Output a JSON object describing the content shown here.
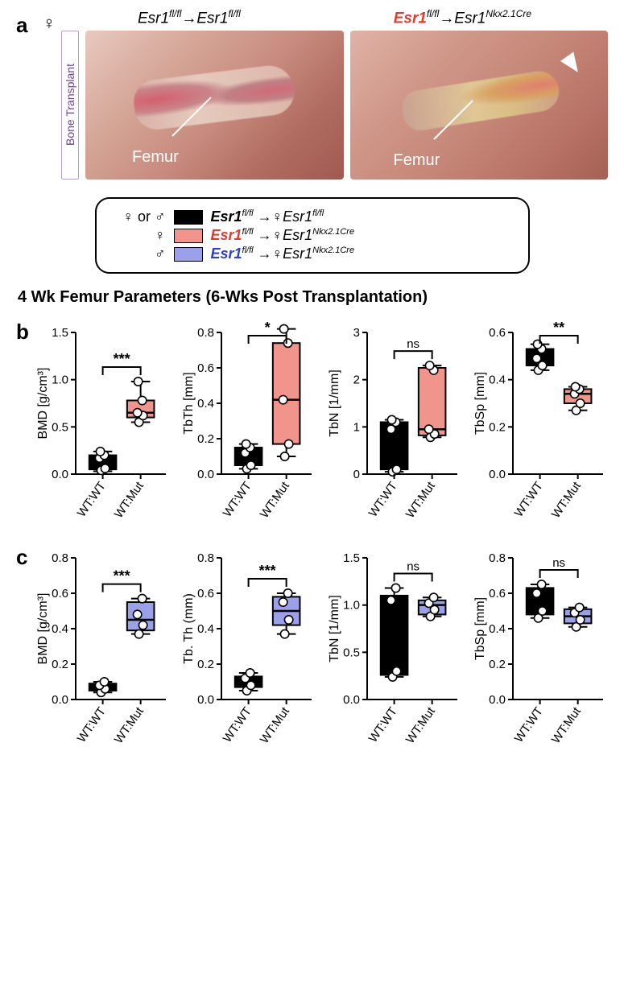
{
  "colors": {
    "black": "#000000",
    "pink": "#f0948c",
    "blue": "#9aa1e8",
    "white": "#ffffff"
  },
  "panel_a": {
    "label": "a",
    "gender_symbol": "♀",
    "side_label": "Bone Transplant",
    "title_left": "Esr1<sup>fl/fl</sup>→Esr1<sup>fl/fl</sup>",
    "title_right_red": "Esr1",
    "title_right_rest": "<sup>fl/fl</sup>→Esr1<sup>Nkx2.1Cre</sup>",
    "femur_label": "Femur"
  },
  "legend": {
    "rows": [
      {
        "sym": "♀ or ♂",
        "swatch": "#000000",
        "pre_color": "black",
        "text": "Esr1<sup>fl/fl</sup> →♀Esr1<sup>fl/fl</sup>"
      },
      {
        "sym": "♀",
        "swatch": "#f0948c",
        "pre_color": "red",
        "text": "Esr1<sup>fl/fl</sup> →♀Esr1<sup>Nkx2.1Cre</sup>"
      },
      {
        "sym": "♂",
        "swatch": "#9aa1e8",
        "pre_color": "blue",
        "text": "Esr1<sup>fl/fl</sup> →♀Esr1<sup>Nkx2.1Cre</sup>"
      }
    ]
  },
  "section_title": "4 Wk Femur Parameters (6-Wks Post Transplantation)",
  "axis_style": {
    "tick_len": 6,
    "axis_width": 2
  },
  "categories": [
    "WT:WT",
    "WT:Mut"
  ],
  "point_radius": 5.2,
  "rows": [
    {
      "label": "b",
      "mut_color": "#f0948c",
      "charts": [
        {
          "ylab": "BMD [g/cm³]",
          "ymin": 0,
          "ymax": 1.5,
          "yticks": [
            0.0,
            0.5,
            1.0,
            1.5
          ],
          "sig": "***",
          "groups": [
            {
              "fill": "#000000",
              "box": {
                "q1": 0.05,
                "med": 0.15,
                "q3": 0.2
              },
              "whisk": {
                "lo": 0.03,
                "hi": 0.24
              },
              "pts": [
                0.04,
                0.06,
                0.17,
                0.2,
                0.24
              ]
            },
            {
              "fill": "#f0948c",
              "box": {
                "q1": 0.6,
                "med": 0.65,
                "q3": 0.78
              },
              "whisk": {
                "lo": 0.55,
                "hi": 0.98
              },
              "pts": [
                0.55,
                0.62,
                0.65,
                0.78,
                0.98
              ]
            }
          ]
        },
        {
          "ylab": "TbTh [mm]",
          "ymin": 0,
          "ymax": 0.8,
          "yticks": [
            0.0,
            0.2,
            0.4,
            0.6,
            0.8
          ],
          "sig": "*",
          "groups": [
            {
              "fill": "#000000",
              "box": {
                "q1": 0.05,
                "med": 0.12,
                "q3": 0.15
              },
              "whisk": {
                "lo": 0.03,
                "hi": 0.17
              },
              "pts": [
                0.03,
                0.05,
                0.12,
                0.15,
                0.17
              ]
            },
            {
              "fill": "#f0948c",
              "box": {
                "q1": 0.17,
                "med": 0.42,
                "q3": 0.74
              },
              "whisk": {
                "lo": 0.1,
                "hi": 0.82
              },
              "pts": [
                0.1,
                0.17,
                0.42,
                0.74,
                0.82
              ]
            }
          ]
        },
        {
          "ylab": "TbN [1/mm]",
          "ymin": 0,
          "ymax": 3,
          "yticks": [
            0,
            1,
            2,
            3
          ],
          "sig": "ns",
          "groups": [
            {
              "fill": "#000000",
              "box": {
                "q1": 0.1,
                "med": 0.95,
                "q3": 1.1
              },
              "whisk": {
                "lo": 0.05,
                "hi": 1.15
              },
              "pts": [
                0.05,
                0.1,
                0.95,
                1.1,
                1.15
              ]
            },
            {
              "fill": "#f0948c",
              "box": {
                "q1": 0.82,
                "med": 0.95,
                "q3": 2.25
              },
              "whisk": {
                "lo": 0.78,
                "hi": 2.3
              },
              "pts": [
                0.78,
                0.85,
                0.95,
                2.2,
                2.3
              ]
            }
          ]
        },
        {
          "ylab": "TbSp [mm]",
          "ymin": 0,
          "ymax": 0.6,
          "yticks": [
            0.0,
            0.2,
            0.4,
            0.6
          ],
          "sig": "**",
          "groups": [
            {
              "fill": "#000000",
              "box": {
                "q1": 0.46,
                "med": 0.49,
                "q3": 0.53
              },
              "whisk": {
                "lo": 0.44,
                "hi": 0.55
              },
              "pts": [
                0.44,
                0.46,
                0.49,
                0.53,
                0.55
              ]
            },
            {
              "fill": "#f0948c",
              "box": {
                "q1": 0.3,
                "med": 0.34,
                "q3": 0.36
              },
              "whisk": {
                "lo": 0.27,
                "hi": 0.37
              },
              "pts": [
                0.27,
                0.3,
                0.34,
                0.36,
                0.37
              ]
            }
          ]
        }
      ]
    },
    {
      "label": "c",
      "mut_color": "#9aa1e8",
      "charts": [
        {
          "ylab": "BMD [g/cm³]",
          "ymin": 0,
          "ymax": 0.8,
          "yticks": [
            0.0,
            0.2,
            0.4,
            0.6,
            0.8
          ],
          "sig": "***",
          "groups": [
            {
              "fill": "#000000",
              "box": {
                "q1": 0.05,
                "med": 0.07,
                "q3": 0.09
              },
              "whisk": {
                "lo": 0.04,
                "hi": 0.1
              },
              "pts": [
                0.04,
                0.06,
                0.08,
                0.1
              ]
            },
            {
              "fill": "#9aa1e8",
              "box": {
                "q1": 0.39,
                "med": 0.45,
                "q3": 0.55
              },
              "whisk": {
                "lo": 0.37,
                "hi": 0.57
              },
              "pts": [
                0.37,
                0.42,
                0.48,
                0.57
              ]
            }
          ]
        },
        {
          "ylab": "Tb. Th (mm)",
          "ymin": 0,
          "ymax": 0.8,
          "yticks": [
            0.0,
            0.2,
            0.4,
            0.6,
            0.8
          ],
          "sig": "***",
          "groups": [
            {
              "fill": "#000000",
              "box": {
                "q1": 0.07,
                "med": 0.1,
                "q3": 0.13
              },
              "whisk": {
                "lo": 0.05,
                "hi": 0.15
              },
              "pts": [
                0.05,
                0.08,
                0.12,
                0.15
              ]
            },
            {
              "fill": "#9aa1e8",
              "box": {
                "q1": 0.42,
                "med": 0.5,
                "q3": 0.58
              },
              "whisk": {
                "lo": 0.37,
                "hi": 0.6
              },
              "pts": [
                0.37,
                0.45,
                0.55,
                0.6
              ]
            }
          ]
        },
        {
          "ylab": "TbN [1/mm]",
          "ymin": 0,
          "ymax": 1.5,
          "yticks": [
            0.0,
            0.5,
            1.0,
            1.5
          ],
          "sig": "ns",
          "groups": [
            {
              "fill": "#000000",
              "box": {
                "q1": 0.26,
                "med": 0.35,
                "q3": 1.1
              },
              "whisk": {
                "lo": 0.24,
                "hi": 1.18
              },
              "pts": [
                0.24,
                0.3,
                1.05,
                1.18
              ]
            },
            {
              "fill": "#9aa1e8",
              "box": {
                "q1": 0.9,
                "med": 1.0,
                "q3": 1.05
              },
              "whisk": {
                "lo": 0.88,
                "hi": 1.08
              },
              "pts": [
                0.88,
                0.95,
                1.02,
                1.08
              ]
            }
          ]
        },
        {
          "ylab": "TbSp [mm]",
          "ymin": 0,
          "ymax": 0.8,
          "yticks": [
            0.0,
            0.2,
            0.4,
            0.6,
            0.8
          ],
          "sig": "ns",
          "groups": [
            {
              "fill": "#000000",
              "box": {
                "q1": 0.48,
                "med": 0.53,
                "q3": 0.63
              },
              "whisk": {
                "lo": 0.46,
                "hi": 0.65
              },
              "pts": [
                0.46,
                0.5,
                0.6,
                0.65
              ]
            },
            {
              "fill": "#9aa1e8",
              "box": {
                "q1": 0.43,
                "med": 0.47,
                "q3": 0.51
              },
              "whisk": {
                "lo": 0.41,
                "hi": 0.52
              },
              "pts": [
                0.41,
                0.45,
                0.49,
                0.52
              ]
            }
          ]
        }
      ]
    }
  ]
}
